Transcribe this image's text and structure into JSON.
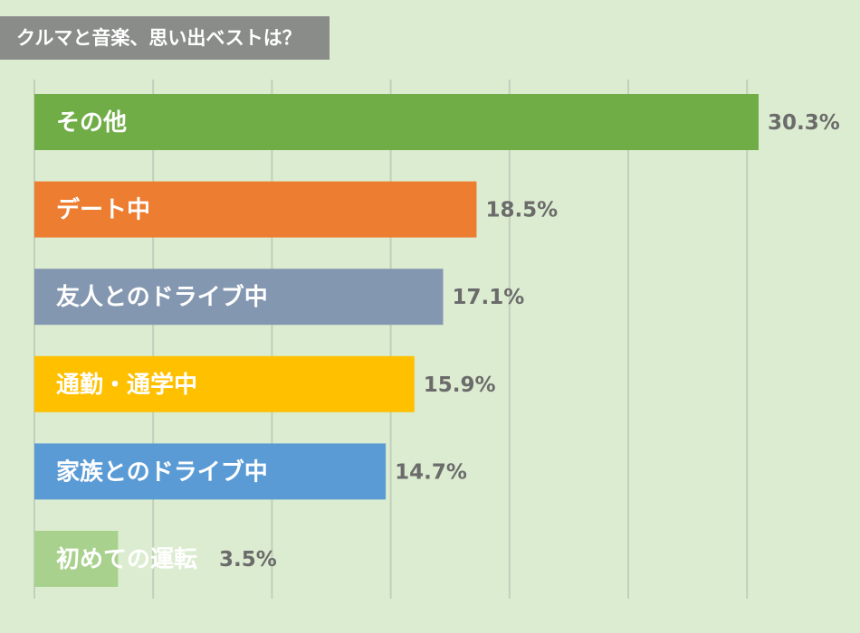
{
  "title": "クルマと音楽、思い出ベストは？",
  "chart_data": {
    "type": "bar",
    "orientation": "horizontal",
    "title": "クルマと音楽、思い出ベストは？",
    "categories": [
      "その他",
      "デート中",
      "友人とのドライブ中",
      "通勤・通学中",
      "家族とのドライブ中",
      "初めての運転"
    ],
    "values": [
      30.3,
      18.5,
      17.1,
      15.9,
      14.7,
      3.5
    ],
    "value_labels": [
      "30.3%",
      "18.5%",
      "17.1%",
      "15.9%",
      "14.7%",
      "3.5%"
    ],
    "colors": [
      "#70ad47",
      "#ed7d31",
      "#8497b0",
      "#ffc000",
      "#5b9bd5",
      "#a9d18e"
    ],
    "unit": "%",
    "xlim": [
      0,
      30.3
    ],
    "grid": true,
    "legend": "none"
  }
}
